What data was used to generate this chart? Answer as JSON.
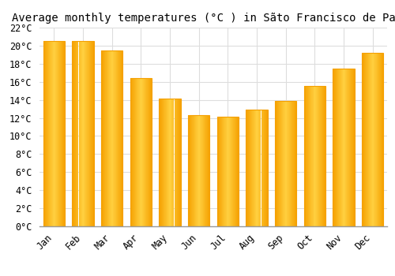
{
  "title": "Average monthly temperatures (°C ) in Sãto Francisco de Paula",
  "months": [
    "Jan",
    "Feb",
    "Mar",
    "Apr",
    "May",
    "Jun",
    "Jul",
    "Aug",
    "Sep",
    "Oct",
    "Nov",
    "Dec"
  ],
  "values": [
    20.5,
    20.5,
    19.5,
    16.4,
    14.1,
    12.3,
    12.1,
    12.9,
    13.9,
    15.5,
    17.5,
    19.2
  ],
  "bar_color_left": "#F5A000",
  "bar_color_center": "#FFD040",
  "bar_color_right": "#F5A000",
  "background_color": "#FFFFFF",
  "outer_background": "#FFFFFF",
  "grid_color": "#DDDDDD",
  "ylim": [
    0,
    22
  ],
  "yticks": [
    0,
    2,
    4,
    6,
    8,
    10,
    12,
    14,
    16,
    18,
    20,
    22
  ],
  "title_fontsize": 10,
  "tick_fontsize": 8.5,
  "bar_width": 0.75
}
